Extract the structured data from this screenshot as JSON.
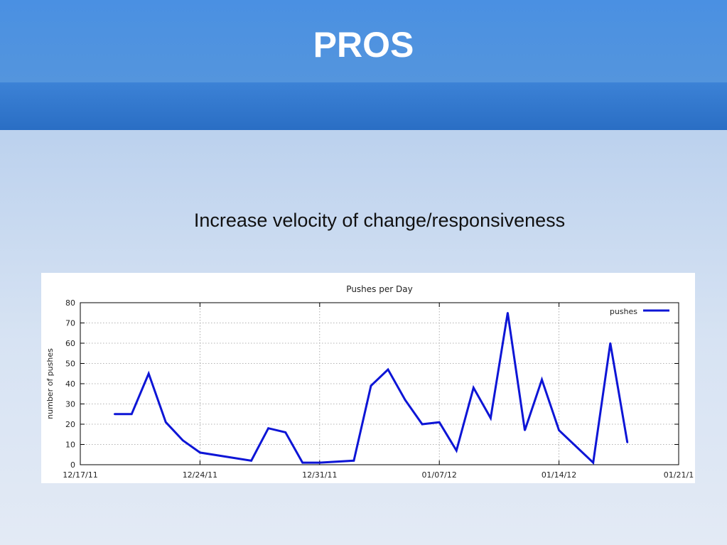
{
  "slide": {
    "title": "PROS",
    "subtitle": "Increase velocity of change/responsiveness"
  },
  "colors": {
    "header_top": "#4a90e2",
    "header_bottom": "#2a6ec4",
    "series_line": "#0d15d6",
    "grid": "#9a9a9a"
  },
  "chart_data": {
    "type": "line",
    "title": "Pushes per Day",
    "xlabel": "",
    "ylabel": "number of pushes",
    "x_type": "date",
    "xlim": [
      "2011-12-17",
      "2012-01-21"
    ],
    "ylim": [
      0,
      80
    ],
    "x_ticks": [
      {
        "date": "2011-12-17",
        "label": "12/17/11"
      },
      {
        "date": "2011-12-24",
        "label": "12/24/11"
      },
      {
        "date": "2011-12-31",
        "label": "12/31/11"
      },
      {
        "date": "2012-01-07",
        "label": "01/07/12"
      },
      {
        "date": "2012-01-14",
        "label": "01/14/12"
      },
      {
        "date": "2012-01-21",
        "label": "01/21/1"
      }
    ],
    "y_ticks": [
      0,
      10,
      20,
      30,
      40,
      50,
      60,
      70,
      80
    ],
    "grid": true,
    "legend_position": "top-right",
    "series": [
      {
        "name": "pushes",
        "points": [
          {
            "x": "2011-12-19",
            "y": 25
          },
          {
            "x": "2011-12-20",
            "y": 25
          },
          {
            "x": "2011-12-21",
            "y": 45
          },
          {
            "x": "2011-12-22",
            "y": 21
          },
          {
            "x": "2011-12-23",
            "y": 12
          },
          {
            "x": "2011-12-24",
            "y": 6
          },
          {
            "x": "2011-12-27",
            "y": 2
          },
          {
            "x": "2011-12-28",
            "y": 18
          },
          {
            "x": "2011-12-29",
            "y": 16
          },
          {
            "x": "2011-12-30",
            "y": 1
          },
          {
            "x": "2011-12-31",
            "y": 1
          },
          {
            "x": "2012-01-02",
            "y": 2
          },
          {
            "x": "2012-01-03",
            "y": 39
          },
          {
            "x": "2012-01-04",
            "y": 47
          },
          {
            "x": "2012-01-05",
            "y": 32
          },
          {
            "x": "2012-01-06",
            "y": 20
          },
          {
            "x": "2012-01-07",
            "y": 21
          },
          {
            "x": "2012-01-08",
            "y": 7
          },
          {
            "x": "2012-01-09",
            "y": 38
          },
          {
            "x": "2012-01-10",
            "y": 23
          },
          {
            "x": "2012-01-11",
            "y": 75
          },
          {
            "x": "2012-01-12",
            "y": 17
          },
          {
            "x": "2012-01-13",
            "y": 42
          },
          {
            "x": "2012-01-14",
            "y": 17
          },
          {
            "x": "2012-01-16",
            "y": 1
          },
          {
            "x": "2012-01-17",
            "y": 60
          },
          {
            "x": "2012-01-18",
            "y": 11
          }
        ]
      }
    ]
  }
}
